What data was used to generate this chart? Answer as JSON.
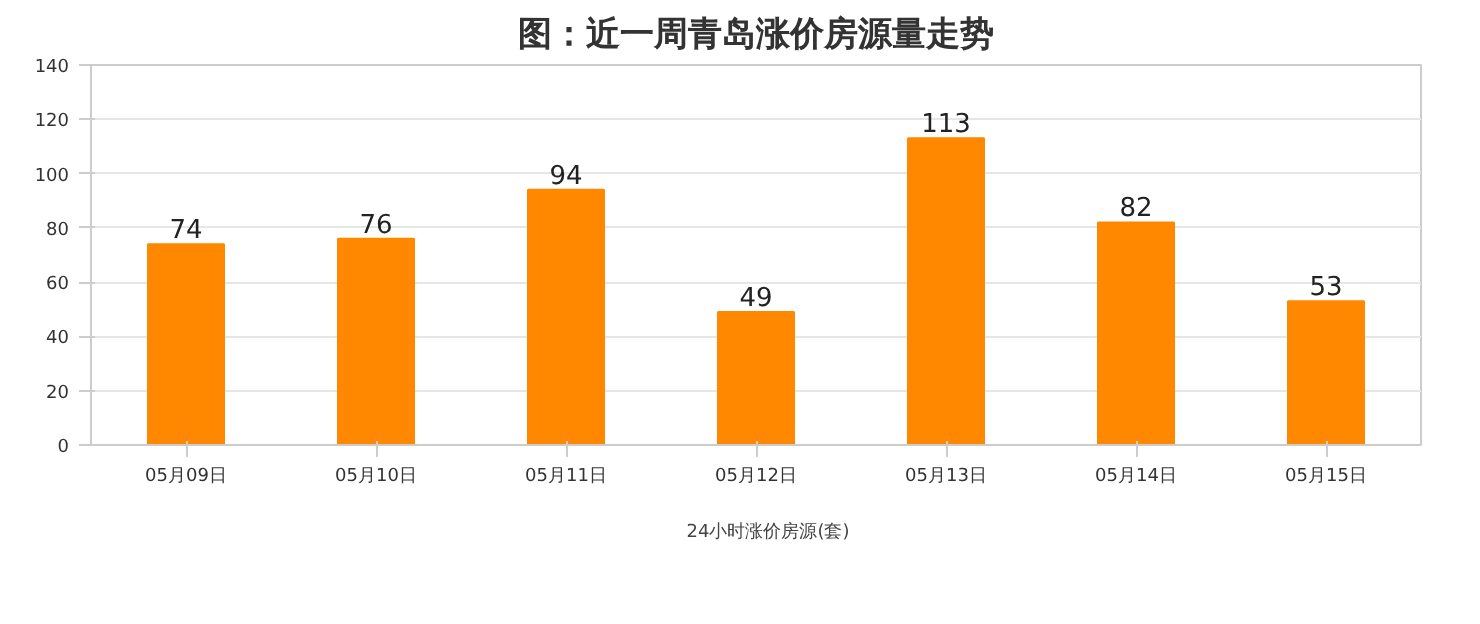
{
  "chart_data": {
    "type": "bar",
    "title": "图：近一周青岛涨价房源量走势",
    "categories": [
      "05月09日",
      "05月10日",
      "05月11日",
      "05月12日",
      "05月13日",
      "05月14日",
      "05月15日"
    ],
    "series": [
      {
        "name": "24小时涨价房源(套)",
        "color": "#ff8800",
        "values": [
          74,
          76,
          94,
          49,
          113,
          82,
          53
        ]
      }
    ],
    "ylim": [
      0,
      140
    ],
    "yticks": [
      0,
      20,
      40,
      60,
      80,
      100,
      120,
      140
    ],
    "grid": "y",
    "legend": "bottom",
    "data_labels": true
  }
}
